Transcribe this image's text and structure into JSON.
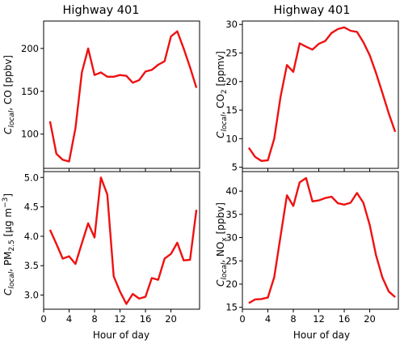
{
  "chart_data": [
    {
      "type": "line",
      "title": "Highway 401",
      "xlabel": "",
      "ylabel_main": "C",
      "ylabel_sub": "local",
      "ylabel_rest": ", CO [ppbv]",
      "xlim": [
        0,
        24.5
      ],
      "ylim": [
        60,
        232
      ],
      "xticks": [
        0,
        4,
        8,
        12,
        16,
        20
      ],
      "yticks": [
        100,
        150,
        200
      ],
      "show_xticklabels": false,
      "grid": false,
      "series": [
        {
          "color": "#ee1111",
          "x": [
            1,
            2,
            3,
            4,
            5,
            6,
            7,
            8,
            9,
            10,
            11,
            12,
            13,
            14,
            15,
            16,
            17,
            18,
            19,
            20,
            21,
            22,
            23,
            24
          ],
          "values": [
            115,
            77,
            70,
            68,
            107,
            172,
            200,
            169,
            172,
            167,
            167,
            169,
            168,
            160,
            163,
            173,
            175,
            181,
            185,
            214,
            220,
            200,
            178,
            154
          ]
        }
      ]
    },
    {
      "type": "line",
      "title": "Highway 401",
      "xlabel": "",
      "ylabel_main": "C",
      "ylabel_sub": "local",
      "ylabel_rest": ", CO",
      "ylabel_sub2": "2",
      "ylabel_rest2": " [ppmv]",
      "xlim": [
        0,
        24.5
      ],
      "ylim": [
        4.8,
        30.6
      ],
      "xticks": [
        0,
        4,
        8,
        12,
        16,
        20
      ],
      "yticks": [
        5,
        10,
        15,
        20,
        25,
        30
      ],
      "show_xticklabels": false,
      "grid": false,
      "series": [
        {
          "color": "#ee1111",
          "x": [
            1,
            2,
            3,
            4,
            5,
            6,
            7,
            8,
            9,
            10,
            11,
            12,
            13,
            14,
            15,
            16,
            17,
            18,
            19,
            20,
            21,
            22,
            23,
            24
          ],
          "values": [
            8.4,
            6.8,
            6.1,
            6.2,
            10.0,
            17.4,
            22.9,
            21.7,
            26.7,
            26.1,
            25.6,
            26.6,
            27.1,
            28.5,
            29.2,
            29.5,
            28.9,
            28.7,
            26.9,
            24.6,
            21.5,
            18.0,
            14.4,
            11.2
          ]
        }
      ]
    },
    {
      "type": "line",
      "title": "",
      "xlabel": "Hour of day",
      "ylabel_main": "C",
      "ylabel_sub": "local",
      "ylabel_rest": ", PM",
      "ylabel_sub2": "2.5",
      "ylabel_rest2": " [µg m",
      "ylabel_sup": "−3",
      "ylabel_rest3": "]",
      "xlim": [
        0,
        24.5
      ],
      "ylim": [
        2.76,
        5.1
      ],
      "xticks": [
        0,
        4,
        8,
        12,
        16,
        20
      ],
      "yticks": [
        3.0,
        3.5,
        4.0,
        4.5,
        5.0
      ],
      "ytick_labels": [
        "3.0",
        "3.5",
        "4.0",
        "4.5",
        "5.0"
      ],
      "show_xticklabels": true,
      "grid": false,
      "series": [
        {
          "color": "#ee1111",
          "x": [
            1,
            2,
            3,
            4,
            5,
            6,
            7,
            8,
            9,
            10,
            11,
            12,
            13,
            14,
            15,
            16,
            17,
            18,
            19,
            20,
            21,
            22,
            23,
            24
          ],
          "values": [
            4.11,
            3.87,
            3.62,
            3.66,
            3.53,
            3.88,
            4.22,
            3.98,
            5.0,
            4.71,
            3.32,
            3.06,
            2.85,
            3.02,
            2.94,
            2.97,
            3.29,
            3.26,
            3.62,
            3.7,
            3.89,
            3.59,
            3.6,
            4.45
          ]
        }
      ]
    },
    {
      "type": "line",
      "title": "",
      "xlabel": "Hour of day",
      "ylabel_main": "C",
      "ylabel_sub": "local",
      "ylabel_rest": ", NO",
      "ylabel_sub2": "x",
      "ylabel_rest2": " [ppbv]",
      "xlim": [
        0,
        24.5
      ],
      "ylim": [
        14.6,
        44.2
      ],
      "xticks": [
        0,
        4,
        8,
        12,
        16,
        20
      ],
      "yticks": [
        15,
        20,
        25,
        30,
        35,
        40
      ],
      "show_xticklabels": true,
      "grid": false,
      "series": [
        {
          "color": "#ee1111",
          "x": [
            1,
            2,
            3,
            4,
            5,
            6,
            7,
            8,
            9,
            10,
            11,
            12,
            13,
            14,
            15,
            16,
            17,
            18,
            19,
            20,
            21,
            22,
            23,
            24
          ],
          "values": [
            15.9,
            16.7,
            16.8,
            17.1,
            21.5,
            30.4,
            39.1,
            36.8,
            41.9,
            42.8,
            37.8,
            38.0,
            38.5,
            38.8,
            37.4,
            37.1,
            37.5,
            39.6,
            37.5,
            32.7,
            26.2,
            21.4,
            18.4,
            17.2
          ]
        }
      ]
    }
  ]
}
